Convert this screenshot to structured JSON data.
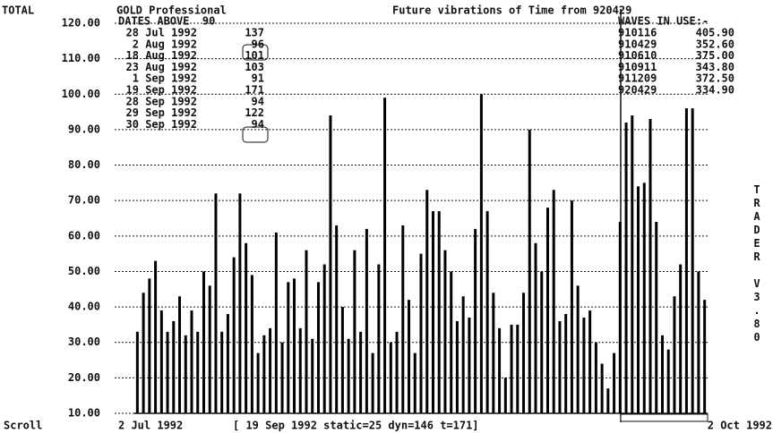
{
  "total_label": "TOTAL",
  "dates_table": {
    "heading": "DATES ABOVE  90",
    "rows": [
      {
        "date": "28 Jul 1992",
        "value": 137
      },
      {
        "date": "2 Aug 1992",
        "value": 96
      },
      {
        "date": "18 Aug 1992",
        "value": 101
      },
      {
        "date": "23 Aug 1992",
        "value": 103
      },
      {
        "date": "1 Sep 1992",
        "value": 91
      },
      {
        "date": "19 Sep 1992",
        "value": 171
      },
      {
        "date": "28 Sep 1992",
        "value": 94
      },
      {
        "date": "29 Sep 1992",
        "value": 122
      },
      {
        "date": "30 Sep 1992",
        "value": 94
      }
    ]
  },
  "waves": {
    "heading": "WAVES IN USE:-",
    "rows": [
      {
        "id": "910116",
        "value": "405.90"
      },
      {
        "id": "910429",
        "value": "352.60"
      },
      {
        "id": "910610",
        "value": "375.00"
      },
      {
        "id": "910911",
        "value": "343.80"
      },
      {
        "id": "911209",
        "value": "372.50"
      },
      {
        "id": "920429",
        "value": "334.90"
      }
    ]
  },
  "side_label": "TRADER V3.80",
  "footer": {
    "scroll": "Scroll",
    "start": "2 Jul 1992",
    "status": "[ 19 Sep 1992 static=25 dyn=146 t=171]",
    "end": "2 Oct 1992"
  },
  "chart_data": {
    "type": "bar",
    "title": "GOLD Professional",
    "subtitle": "Future vibrations of Time from 920429",
    "values": [
      33,
      44,
      48,
      53,
      39,
      33,
      36,
      43,
      32,
      39,
      33,
      50,
      46,
      72,
      33,
      38,
      54,
      72,
      58,
      49,
      27,
      32,
      34,
      61,
      30,
      47,
      48,
      34,
      56,
      31,
      47,
      52,
      94,
      63,
      40,
      31,
      56,
      33,
      62,
      27,
      52,
      99,
      30,
      33,
      63,
      42,
      27,
      55,
      73,
      67,
      67,
      56,
      50,
      36,
      43,
      37,
      62,
      100,
      67,
      44,
      34,
      20,
      35,
      35,
      44,
      90,
      58,
      50,
      68,
      73,
      36,
      38,
      70,
      46,
      37,
      39,
      30,
      24,
      17,
      27,
      64,
      92,
      94,
      74,
      75,
      93,
      64,
      32,
      28,
      43,
      52,
      96,
      96,
      50,
      42
    ],
    "color": "#000000",
    "ylim": [
      10,
      120
    ],
    "yticks": [
      {
        "value": 10,
        "label": "10.00"
      },
      {
        "value": 20,
        "label": "20.00"
      },
      {
        "value": 30,
        "label": "30.00"
      },
      {
        "value": 40,
        "label": "40.00"
      },
      {
        "value": 50,
        "label": "50.00"
      },
      {
        "value": 60,
        "label": "60.00"
      },
      {
        "value": 70,
        "label": "70.00"
      },
      {
        "value": 80,
        "label": "80.00"
      },
      {
        "value": 90,
        "label": "90.00"
      },
      {
        "value": 100,
        "label": "100.00"
      },
      {
        "value": 110,
        "label": "110.00"
      },
      {
        "value": 120,
        "label": "120.00"
      }
    ],
    "grid": true
  }
}
